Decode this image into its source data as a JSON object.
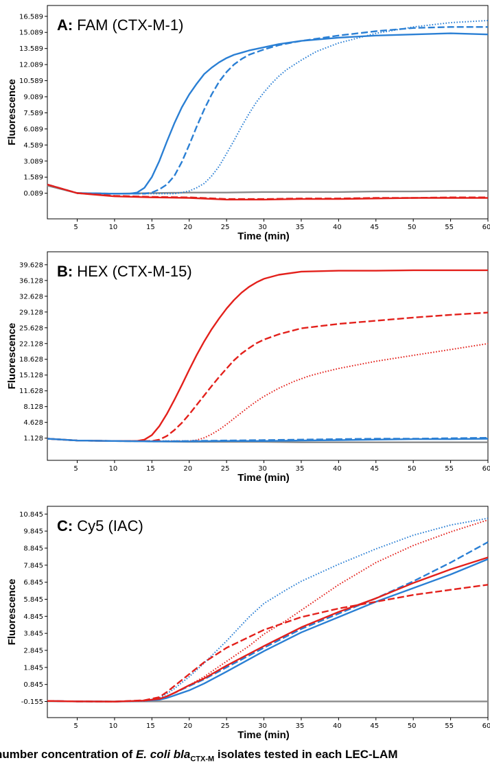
{
  "colors": {
    "CTX-M-1": "#2a7fd4",
    "CTX-M-15": "#e3201b",
    "negative": "#8a8a8a"
  },
  "caption": {
    "prefix": "number concentration of ",
    "organism": "E. coli bla",
    "subscript": "CTX-M",
    "suffix": " isolates tested in each LEC-LAM"
  },
  "chart_data": [
    {
      "type": "line",
      "panel": "A",
      "title_bold": "A:",
      "title": "FAM (CTX-M-1)",
      "xlabel": "Time (min)",
      "ylabel": "Fluorescence",
      "xlim": [
        1,
        60
      ],
      "ylim": [
        -2.3,
        17.6
      ],
      "xticks": [
        5,
        10,
        15,
        20,
        25,
        30,
        35,
        40,
        45,
        50,
        55,
        60
      ],
      "yticks": [
        0.089,
        1.589,
        3.089,
        4.589,
        6.089,
        7.589,
        9.089,
        10.589,
        12.089,
        13.589,
        15.089,
        16.589
      ],
      "ytick_labels": [
        "0.089",
        "1.589",
        "3.089",
        "4.589",
        "6.089",
        "7.589",
        "9.089",
        "10.589",
        "12.089",
        "13.589",
        "15.089",
        "16.589"
      ],
      "series": [
        {
          "color_key": "CTX-M-1",
          "dash": "solid",
          "x": [
            1,
            5,
            10,
            12,
            13,
            14,
            15,
            16,
            17,
            18,
            19,
            20,
            21,
            22,
            23,
            24,
            25,
            26,
            27,
            28,
            30,
            32,
            35,
            40,
            45,
            50,
            55,
            60
          ],
          "y": [
            0.9,
            0.1,
            0.05,
            0.05,
            0.15,
            0.6,
            1.6,
            3.1,
            4.9,
            6.6,
            8.1,
            9.3,
            10.3,
            11.2,
            11.8,
            12.3,
            12.7,
            13.0,
            13.2,
            13.4,
            13.7,
            14.0,
            14.3,
            14.6,
            14.8,
            14.9,
            15.0,
            14.9
          ]
        },
        {
          "color_key": "CTX-M-1",
          "dash": "dashed",
          "x": [
            1,
            5,
            10,
            14,
            15,
            16,
            17,
            18,
            19,
            20,
            21,
            22,
            23,
            24,
            25,
            26,
            27,
            28,
            30,
            32,
            35,
            40,
            45,
            50,
            55,
            60
          ],
          "y": [
            0.9,
            0.1,
            0.05,
            0.05,
            0.15,
            0.45,
            0.9,
            1.7,
            3.0,
            4.6,
            6.3,
            7.9,
            9.3,
            10.5,
            11.4,
            12.1,
            12.6,
            13.0,
            13.5,
            13.9,
            14.3,
            14.8,
            15.2,
            15.5,
            15.6,
            15.6
          ]
        },
        {
          "color_key": "CTX-M-1",
          "dash": "dotted",
          "x": [
            1,
            5,
            10,
            15,
            18,
            19,
            20,
            21,
            22,
            23,
            24,
            25,
            26,
            27,
            28,
            29,
            30,
            31,
            32,
            33,
            35,
            37,
            40,
            45,
            50,
            55,
            60
          ],
          "y": [
            0.9,
            0.1,
            0.05,
            0.05,
            0.05,
            0.15,
            0.3,
            0.6,
            1.0,
            1.7,
            2.6,
            3.8,
            5.0,
            6.3,
            7.5,
            8.6,
            9.5,
            10.3,
            11.0,
            11.6,
            12.5,
            13.3,
            14.1,
            15.0,
            15.6,
            16.0,
            16.2
          ]
        },
        {
          "color_key": "CTX-M-15",
          "dash": "solid",
          "x": [
            1,
            5,
            10,
            15,
            20,
            25,
            30,
            35,
            40,
            45,
            50,
            55,
            60
          ],
          "y": [
            0.9,
            0.1,
            -0.2,
            -0.3,
            -0.35,
            -0.5,
            -0.5,
            -0.45,
            -0.45,
            -0.4,
            -0.35,
            -0.35,
            -0.35
          ]
        },
        {
          "color_key": "CTX-M-15",
          "dash": "dashed",
          "x": [
            1,
            5,
            10,
            15,
            20,
            25,
            30,
            35,
            40,
            45,
            50,
            55,
            60
          ],
          "y": [
            0.9,
            0.1,
            -0.15,
            -0.25,
            -0.3,
            -0.45,
            -0.45,
            -0.4,
            -0.4,
            -0.35,
            -0.35,
            -0.3,
            -0.3
          ]
        },
        {
          "color_key": "negative",
          "dash": "solid",
          "x": [
            1,
            5,
            10,
            15,
            20,
            25,
            30,
            35,
            40,
            45,
            50,
            55,
            60
          ],
          "y": [
            0.8,
            0.1,
            0.05,
            0.1,
            0.15,
            0.15,
            0.2,
            0.2,
            0.2,
            0.25,
            0.25,
            0.3,
            0.3
          ]
        }
      ]
    },
    {
      "type": "line",
      "panel": "B",
      "title_bold": "B:",
      "title": "HEX (CTX-M-15)",
      "xlabel": "Time (min)",
      "ylabel": "Fluorescence",
      "xlim": [
        1,
        60
      ],
      "ylim": [
        -3.8,
        42.5
      ],
      "xticks": [
        5,
        10,
        15,
        20,
        25,
        30,
        35,
        40,
        45,
        50,
        55,
        60
      ],
      "yticks": [
        1.128,
        4.628,
        8.128,
        11.628,
        15.128,
        18.628,
        22.128,
        25.628,
        29.128,
        32.628,
        36.128,
        39.628
      ],
      "ytick_labels": [
        "1.128",
        "4.628",
        "8.128",
        "11.628",
        "15.128",
        "18.628",
        "22.128",
        "25.628",
        "29.128",
        "32.628",
        "36.128",
        "39.628"
      ],
      "series": [
        {
          "color_key": "CTX-M-15",
          "dash": "solid",
          "x": [
            1,
            5,
            10,
            13,
            14,
            15,
            16,
            17,
            18,
            19,
            20,
            21,
            22,
            23,
            24,
            25,
            26,
            27,
            28,
            29,
            30,
            32,
            35,
            40,
            45,
            50,
            55,
            60
          ],
          "y": [
            1.0,
            0.6,
            0.5,
            0.5,
            0.8,
            1.8,
            3.8,
            6.5,
            9.6,
            12.9,
            16.3,
            19.6,
            22.6,
            25.3,
            27.7,
            29.9,
            31.8,
            33.4,
            34.7,
            35.7,
            36.5,
            37.4,
            38.1,
            38.3,
            38.3,
            38.4,
            38.4,
            38.4
          ]
        },
        {
          "color_key": "CTX-M-15",
          "dash": "dashed",
          "x": [
            1,
            5,
            10,
            15,
            16,
            17,
            18,
            19,
            20,
            21,
            22,
            23,
            24,
            25,
            26,
            27,
            28,
            29,
            30,
            32,
            35,
            40,
            45,
            50,
            55,
            60
          ],
          "y": [
            1.0,
            0.6,
            0.5,
            0.5,
            0.8,
            1.6,
            2.9,
            4.5,
            6.4,
            8.5,
            10.6,
            12.7,
            14.7,
            16.6,
            18.4,
            19.9,
            21.1,
            22.2,
            23.0,
            24.2,
            25.5,
            26.5,
            27.2,
            27.9,
            28.5,
            29.0
          ]
        },
        {
          "color_key": "CTX-M-15",
          "dash": "dotted",
          "x": [
            1,
            5,
            10,
            15,
            20,
            21,
            22,
            23,
            24,
            25,
            26,
            27,
            28,
            29,
            30,
            32,
            34,
            36,
            38,
            40,
            45,
            50,
            55,
            60
          ],
          "y": [
            1.0,
            0.6,
            0.5,
            0.5,
            0.5,
            0.7,
            1.2,
            2.0,
            3.0,
            4.2,
            5.5,
            6.8,
            8.1,
            9.3,
            10.4,
            12.2,
            13.7,
            14.9,
            15.8,
            16.6,
            18.2,
            19.5,
            20.8,
            22.1
          ]
        },
        {
          "color_key": "CTX-M-1",
          "dash": "solid",
          "x": [
            1,
            5,
            10,
            15,
            20,
            25,
            30,
            35,
            40,
            45,
            50,
            55,
            60
          ],
          "y": [
            1.0,
            0.6,
            0.5,
            0.4,
            0.4,
            0.5,
            0.5,
            0.6,
            0.7,
            0.8,
            0.9,
            0.9,
            1.0
          ]
        },
        {
          "color_key": "CTX-M-1",
          "dash": "dashed",
          "x": [
            1,
            5,
            10,
            15,
            20,
            25,
            30,
            35,
            40,
            45,
            50,
            55,
            60
          ],
          "y": [
            1.0,
            0.6,
            0.5,
            0.4,
            0.5,
            0.6,
            0.7,
            0.8,
            0.9,
            1.0,
            1.0,
            1.1,
            1.2
          ]
        },
        {
          "color_key": "negative",
          "dash": "solid",
          "x": [
            1,
            5,
            10,
            15,
            20,
            25,
            30,
            35,
            40,
            45,
            50,
            55,
            60
          ],
          "y": [
            1.0,
            0.6,
            0.5,
            0.4,
            0.3,
            0.3,
            0.3,
            0.2,
            0.2,
            0.2,
            0.2,
            0.2,
            0.2
          ]
        }
      ]
    },
    {
      "type": "line",
      "panel": "C",
      "title_bold": "C:",
      "title": "Cy5 (IAC)",
      "xlabel": "Time (min)",
      "ylabel": "Fluorescence",
      "xlim": [
        1,
        60
      ],
      "ylim": [
        -1.1,
        11.3
      ],
      "xticks": [
        5,
        10,
        15,
        20,
        25,
        30,
        35,
        40,
        45,
        50,
        55,
        60
      ],
      "yticks": [
        -0.155,
        0.845,
        1.845,
        2.845,
        3.845,
        4.845,
        5.845,
        6.845,
        7.845,
        8.845,
        9.845,
        10.845
      ],
      "ytick_labels": [
        "-0.155",
        "0.845",
        "1.845",
        "2.845",
        "3.845",
        "4.845",
        "5.845",
        "6.845",
        "7.845",
        "8.845",
        "9.845",
        "10.845"
      ],
      "series": [
        {
          "color_key": "CTX-M-1",
          "dash": "solid",
          "x": [
            1,
            5,
            10,
            14,
            16,
            17,
            18,
            20,
            22,
            25,
            30,
            35,
            40,
            45,
            50,
            55,
            60
          ],
          "y": [
            -0.12,
            -0.15,
            -0.16,
            -0.12,
            -0.05,
            0.05,
            0.2,
            0.5,
            0.9,
            1.6,
            2.8,
            3.9,
            4.8,
            5.7,
            6.5,
            7.3,
            8.2
          ]
        },
        {
          "color_key": "CTX-M-1",
          "dash": "dashed",
          "x": [
            1,
            5,
            10,
            14,
            16,
            17,
            18,
            20,
            22,
            25,
            30,
            35,
            40,
            45,
            50,
            55,
            60
          ],
          "y": [
            -0.12,
            -0.15,
            -0.16,
            -0.1,
            0.0,
            0.15,
            0.35,
            0.75,
            1.15,
            1.85,
            3.0,
            4.1,
            5.0,
            5.9,
            6.9,
            8.0,
            9.2
          ]
        },
        {
          "color_key": "CTX-M-1",
          "dash": "dotted",
          "x": [
            1,
            5,
            10,
            14,
            16,
            17,
            18,
            20,
            22,
            25,
            28,
            30,
            33,
            35,
            40,
            45,
            50,
            55,
            60
          ],
          "y": [
            -0.12,
            -0.15,
            -0.16,
            -0.1,
            0.05,
            0.3,
            0.6,
            1.3,
            2.1,
            3.4,
            4.8,
            5.6,
            6.4,
            6.9,
            7.9,
            8.8,
            9.6,
            10.2,
            10.6
          ]
        },
        {
          "color_key": "CTX-M-15",
          "dash": "solid",
          "x": [
            1,
            5,
            10,
            14,
            16,
            17,
            18,
            20,
            22,
            25,
            30,
            35,
            40,
            45,
            50,
            55,
            60
          ],
          "y": [
            -0.12,
            -0.15,
            -0.16,
            -0.1,
            0.0,
            0.15,
            0.35,
            0.8,
            1.2,
            1.95,
            3.1,
            4.2,
            5.1,
            5.9,
            6.8,
            7.6,
            8.3
          ]
        },
        {
          "color_key": "CTX-M-15",
          "dash": "dashed",
          "x": [
            1,
            5,
            10,
            14,
            16,
            17,
            18,
            20,
            22,
            25,
            30,
            35,
            38,
            40,
            45,
            50,
            55,
            60
          ],
          "y": [
            -0.12,
            -0.15,
            -0.16,
            -0.08,
            0.1,
            0.4,
            0.75,
            1.45,
            2.15,
            3.0,
            4.05,
            4.8,
            5.1,
            5.3,
            5.7,
            6.1,
            6.4,
            6.7
          ]
        },
        {
          "color_key": "CTX-M-15",
          "dash": "dotted",
          "x": [
            1,
            5,
            10,
            14,
            16,
            17,
            18,
            20,
            22,
            25,
            28,
            30,
            33,
            35,
            40,
            45,
            50,
            55,
            60
          ],
          "y": [
            -0.12,
            -0.15,
            -0.16,
            -0.12,
            0.0,
            0.15,
            0.35,
            0.8,
            1.3,
            2.2,
            3.1,
            3.8,
            4.6,
            5.2,
            6.7,
            8.0,
            9.0,
            9.8,
            10.5
          ]
        },
        {
          "color_key": "negative",
          "dash": "solid",
          "x": [
            1,
            5,
            10,
            15,
            20,
            25,
            30,
            35,
            40,
            45,
            50,
            55,
            60
          ],
          "y": [
            -0.14,
            -0.15,
            -0.15,
            -0.15,
            -0.15,
            -0.15,
            -0.15,
            -0.15,
            -0.15,
            -0.15,
            -0.15,
            -0.15,
            -0.15
          ]
        }
      ]
    }
  ]
}
